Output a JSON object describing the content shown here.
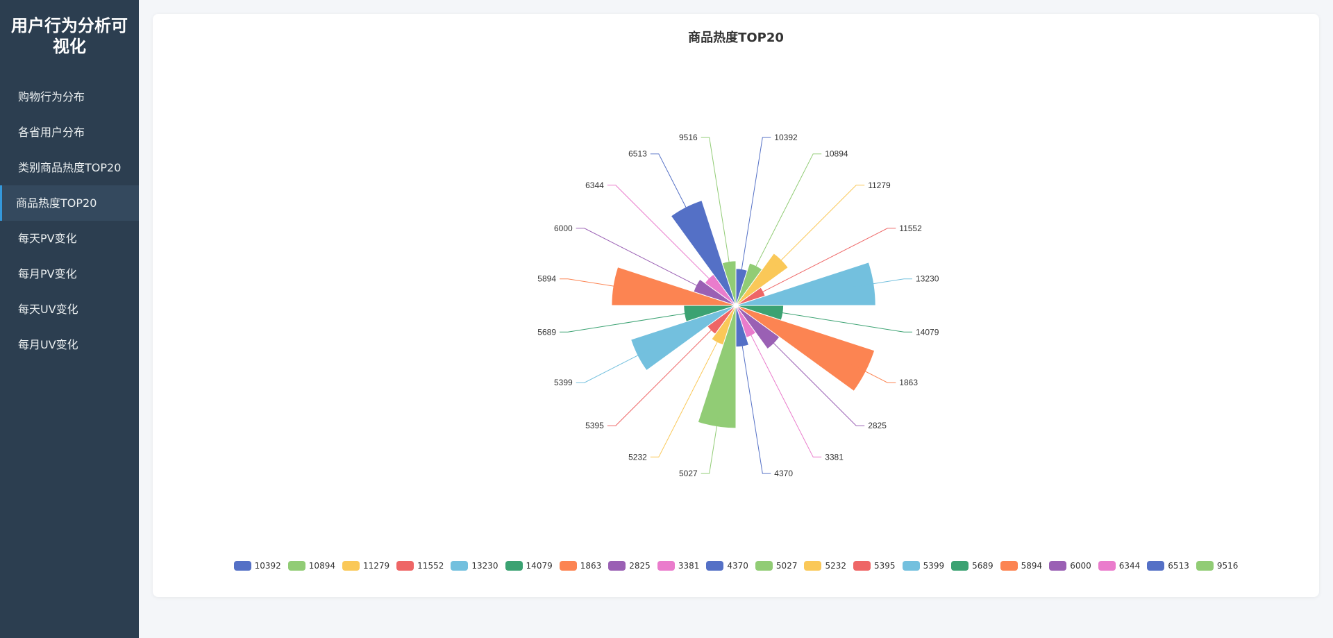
{
  "app": {
    "title": "用户行为分析可视化"
  },
  "sidebar": {
    "items": [
      {
        "label": "购物行为分布",
        "active": false
      },
      {
        "label": "各省用户分布",
        "active": false
      },
      {
        "label": "类别商品热度TOP20",
        "active": false
      },
      {
        "label": "商品热度TOP20",
        "active": true
      },
      {
        "label": "每天PV变化",
        "active": false
      },
      {
        "label": "每月PV变化",
        "active": false
      },
      {
        "label": "每天UV变化",
        "active": false
      },
      {
        "label": "每月UV变化",
        "active": false
      }
    ]
  },
  "panel": {
    "title": "商品热度TOP20"
  },
  "colors": [
    "#5470c6",
    "#91cc75",
    "#fac858",
    "#ee6666",
    "#73c0de",
    "#3ba272",
    "#fc8452",
    "#9a60b4",
    "#ea7ccc"
  ],
  "chart_data": {
    "type": "pie",
    "rose_type": "radius",
    "title": "商品热度TOP20",
    "legend_position": "bottom",
    "categories": [
      "10392",
      "10894",
      "11279",
      "11552",
      "13230",
      "14079",
      "1863",
      "2825",
      "3381",
      "4370",
      "5027",
      "5232",
      "5395",
      "5399",
      "5689",
      "5894",
      "6000",
      "6344",
      "6513",
      "9516"
    ],
    "values": [
      15,
      20,
      33,
      11,
      82,
      22,
      86,
      26,
      13,
      18,
      71,
      18,
      14,
      63,
      25,
      72,
      20,
      16,
      63,
      20
    ]
  }
}
